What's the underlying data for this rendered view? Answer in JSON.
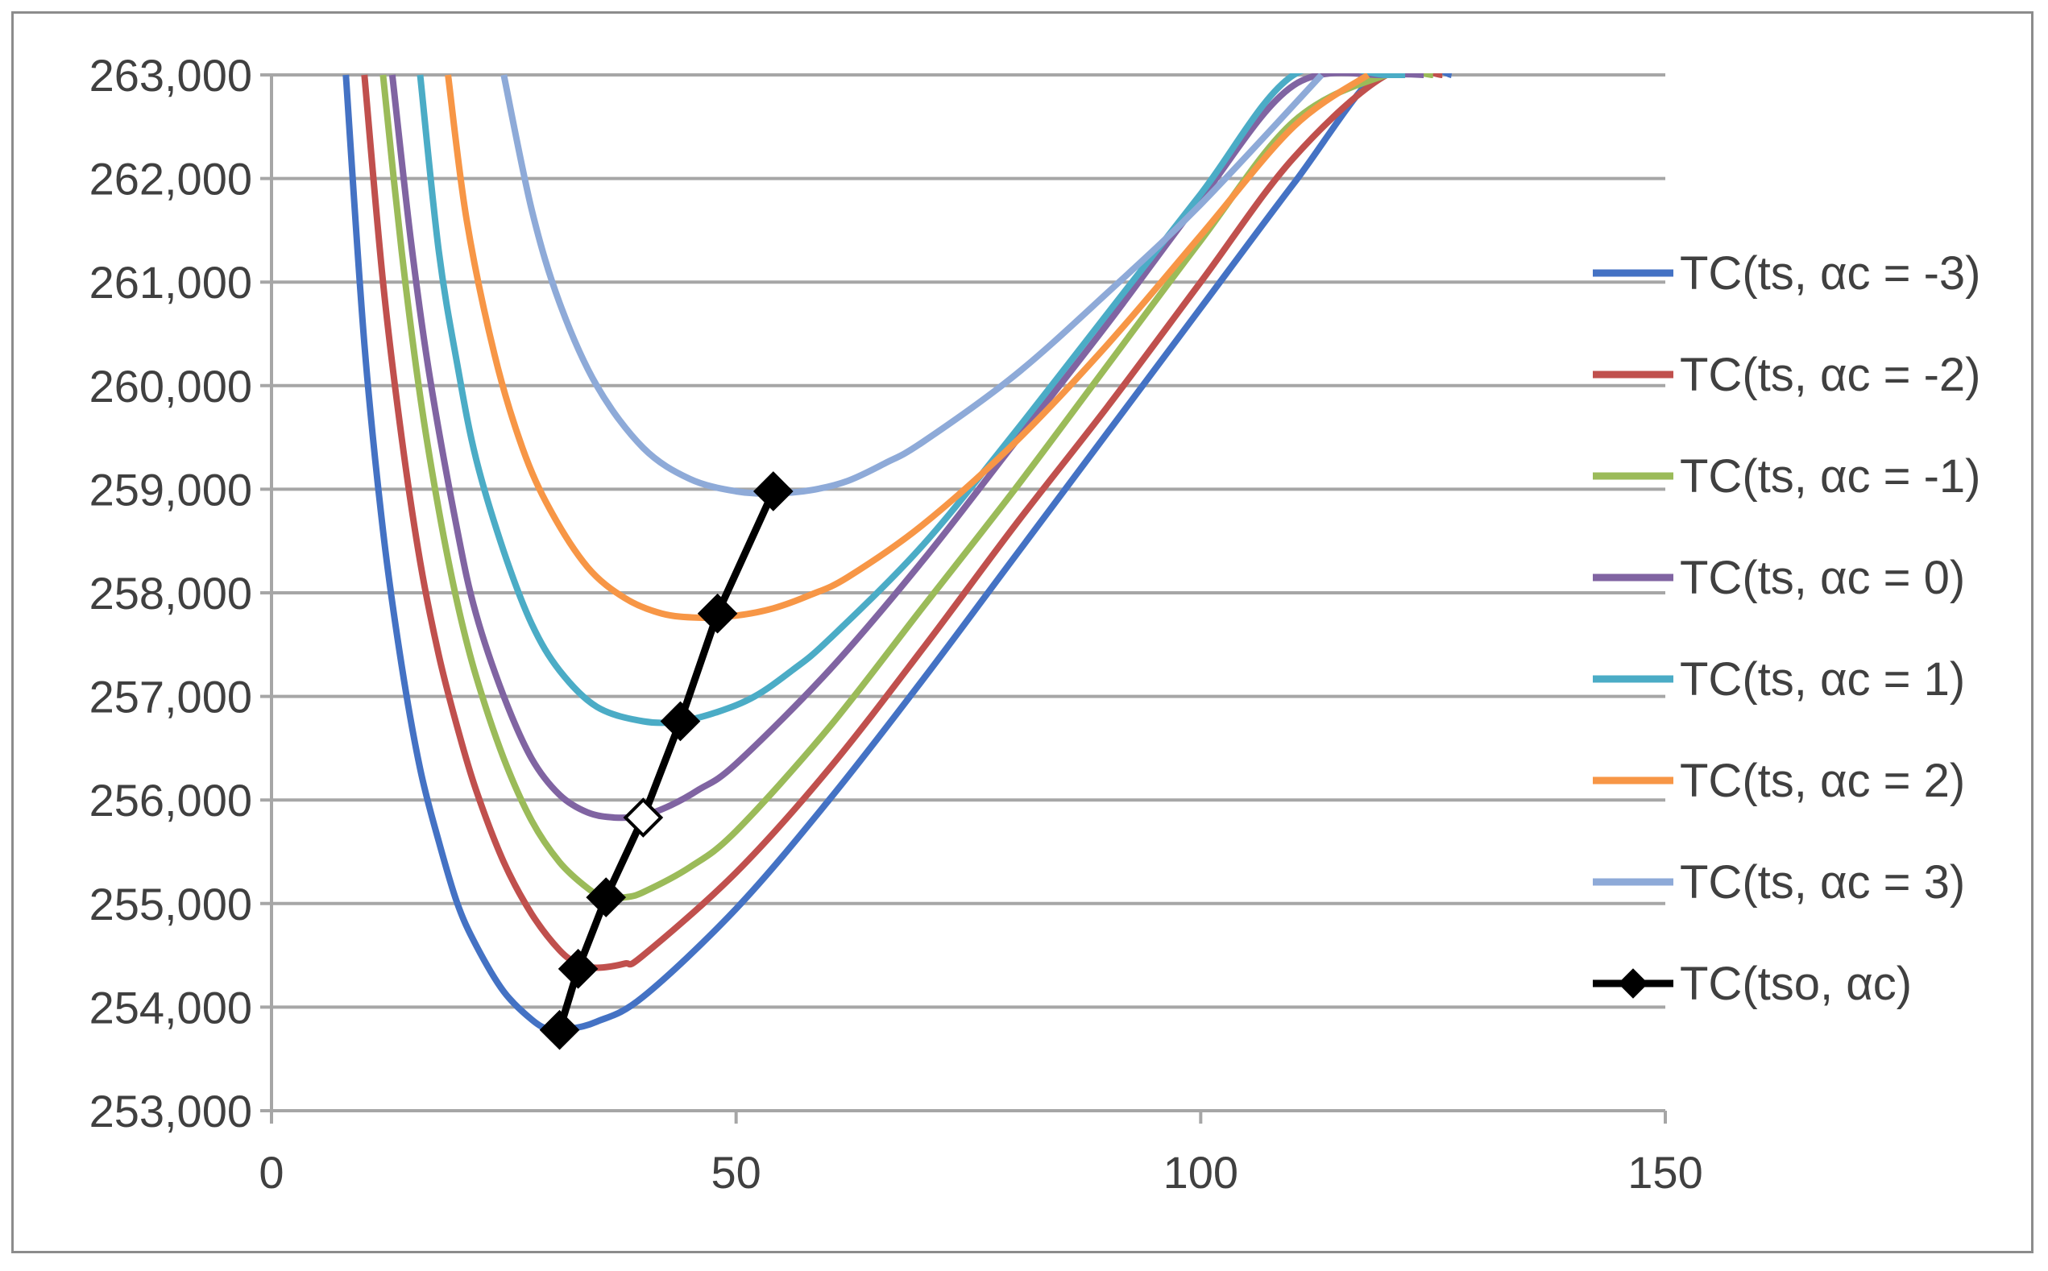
{
  "chart_data": {
    "type": "line",
    "title": "",
    "xlabel": "",
    "ylabel": "",
    "xlim": [
      0,
      150
    ],
    "ylim": [
      253000,
      263000
    ],
    "x_ticks": [
      {
        "value": 0,
        "label": "0"
      },
      {
        "value": 50,
        "label": "50"
      },
      {
        "value": 100,
        "label": "100"
      },
      {
        "value": 150,
        "label": "150"
      }
    ],
    "y_ticks": [
      {
        "value": 253000,
        "label": "253,000"
      },
      {
        "value": 254000,
        "label": "254,000"
      },
      {
        "value": 255000,
        "label": "255,000"
      },
      {
        "value": 256000,
        "label": "256,000"
      },
      {
        "value": 257000,
        "label": "257,000"
      },
      {
        "value": 258000,
        "label": "258,000"
      },
      {
        "value": 259000,
        "label": "259,000"
      },
      {
        "value": 260000,
        "label": "260,000"
      },
      {
        "value": 261000,
        "label": "261,000"
      },
      {
        "value": 262000,
        "label": "262,000"
      },
      {
        "value": 263000,
        "label": "263,000"
      }
    ],
    "grid": "horizontal",
    "legend_position": "right",
    "series": [
      {
        "name": "TC(ts, αc = -3)",
        "color": "#4472c4",
        "x": [
          8,
          10,
          12,
          14,
          16,
          18,
          20,
          22,
          25,
          28,
          30,
          32,
          35,
          40,
          50,
          60,
          70,
          80,
          90,
          100,
          110,
          120,
          127
        ],
        "y": [
          263000,
          260400,
          258600,
          257300,
          256300,
          255600,
          255000,
          254600,
          254150,
          253880,
          253780,
          253790,
          253860,
          254100,
          254950,
          256000,
          257150,
          258350,
          259550,
          260750,
          261950,
          263100,
          263000
        ]
      },
      {
        "name": "TC(ts, αc = -2)",
        "color": "#c0504d",
        "x": [
          10,
          12,
          14,
          16,
          18,
          20,
          22,
          25,
          28,
          31,
          33,
          35,
          38,
          40,
          50,
          60,
          70,
          80,
          90,
          100,
          110,
          120,
          126
        ],
        "y": [
          263000,
          261000,
          259500,
          258300,
          257400,
          256700,
          256100,
          255400,
          254900,
          254550,
          254420,
          254380,
          254420,
          254500,
          255300,
          256300,
          257450,
          258650,
          259800,
          261000,
          262200,
          263000,
          263000
        ]
      },
      {
        "name": "TC(ts, αc = -1)",
        "color": "#9bbb59",
        "x": [
          12,
          14,
          16,
          18,
          20,
          22,
          25,
          28,
          31,
          34,
          36,
          38,
          40,
          45,
          50,
          60,
          70,
          80,
          90,
          100,
          110,
          120,
          125
        ],
        "y": [
          263000,
          261300,
          259900,
          258800,
          257900,
          257200,
          256400,
          255800,
          255400,
          255150,
          255050,
          255060,
          255110,
          255350,
          255700,
          256700,
          257850,
          259000,
          260200,
          261400,
          262550,
          263000,
          263000
        ]
      },
      {
        "name": "TC(ts, αc = 0)",
        "color": "#8064a2",
        "x": [
          13,
          15,
          17,
          20,
          22,
          25,
          28,
          31,
          34,
          37,
          40,
          43,
          46,
          50,
          60,
          70,
          80,
          90,
          100,
          110,
          120,
          124
        ],
        "y": [
          263000,
          261400,
          260100,
          258600,
          257800,
          257000,
          256400,
          256050,
          255880,
          255830,
          255850,
          255950,
          256100,
          256350,
          257250,
          258300,
          259450,
          260600,
          261800,
          262900,
          263000,
          263000
        ]
      },
      {
        "name": "TC(ts, αc = 1)",
        "color": "#4bacc6",
        "x": [
          16,
          18,
          20,
          22,
          25,
          28,
          31,
          35,
          40,
          44,
          48,
          52,
          56,
          60,
          70,
          80,
          90,
          100,
          110,
          120,
          122
        ],
        "y": [
          263000,
          261300,
          260200,
          259300,
          258400,
          257700,
          257250,
          256900,
          256760,
          256760,
          256850,
          257000,
          257250,
          257550,
          258450,
          259550,
          260700,
          261850,
          263000,
          263000,
          263000
        ]
      },
      {
        "name": "TC(ts, αc = 2)",
        "color": "#f79646",
        "x": [
          19,
          21,
          24,
          27,
          30,
          34,
          38,
          42,
          46,
          50,
          54,
          58,
          62,
          70,
          80,
          90,
          100,
          110,
          118
        ],
        "y": [
          263000,
          261600,
          260300,
          259400,
          258800,
          258250,
          257950,
          257800,
          257760,
          257780,
          257850,
          257980,
          258150,
          258650,
          259450,
          260400,
          261450,
          262500,
          263000
        ]
      },
      {
        "name": "TC(ts, αc = 3)",
        "color": "#8eaad8",
        "x": [
          25,
          28,
          31,
          35,
          40,
          45,
          50,
          54,
          58,
          62,
          66,
          70,
          80,
          90,
          100,
          113
        ],
        "y": [
          263000,
          261700,
          260800,
          260000,
          259400,
          259100,
          258980,
          258960,
          258990,
          259080,
          259250,
          259450,
          260100,
          260900,
          261750,
          263000
        ]
      },
      {
        "name": "TC(tso, αc)",
        "color": "#000000",
        "x": [
          31,
          33,
          36,
          40,
          44,
          48,
          54
        ],
        "y": [
          253780,
          254370,
          255060,
          255830,
          256760,
          257800,
          258980
        ]
      }
    ],
    "highlighted_point": {
      "series": "TC(tso, αc)",
      "x": 40,
      "y": 255830,
      "style": "hollow white diamond"
    }
  }
}
